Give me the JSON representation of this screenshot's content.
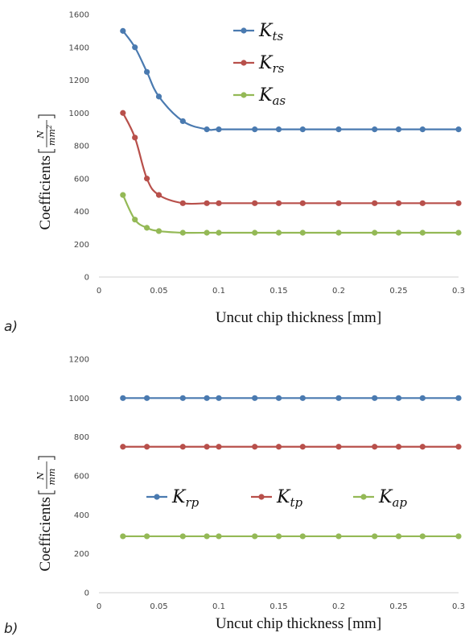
{
  "chart_data": [
    {
      "type": "line",
      "panel_label": "a)",
      "xlabel": "Uncut chip thickness [mm]",
      "ylabel": "Coefficients",
      "ylabel_unit_num": "N",
      "ylabel_unit_den": "mm",
      "ylabel_unit_den_exp": "2",
      "xlim": [
        0,
        0.3
      ],
      "ylim": [
        0,
        1600
      ],
      "xticks": [
        0,
        0.05,
        0.1,
        0.15,
        0.2,
        0.25,
        0.3
      ],
      "xtick_labels": [
        "0",
        "0.05",
        "0.1",
        "0.15",
        "0.2",
        "0.25",
        "0.3"
      ],
      "yticks": [
        0,
        200,
        400,
        600,
        800,
        1000,
        1200,
        1400,
        1600
      ],
      "ytick_labels": [
        "0",
        "200",
        "400",
        "600",
        "800",
        "1000",
        "1200",
        "1400",
        "1600"
      ],
      "grid": false,
      "legend_position": "top-center",
      "x": [
        0.02,
        0.03,
        0.04,
        0.05,
        0.07,
        0.09,
        0.1,
        0.13,
        0.15,
        0.17,
        0.2,
        0.23,
        0.25,
        0.27,
        0.3
      ],
      "series": [
        {
          "name": "K",
          "sub": "ts",
          "color": "#4a7ab0",
          "values": [
            1500,
            1400,
            1250,
            1100,
            950,
            900,
            900,
            900,
            900,
            900,
            900,
            900,
            900,
            900,
            900
          ]
        },
        {
          "name": "K",
          "sub": "rs",
          "color": "#b8504b",
          "values": [
            1000,
            850,
            600,
            500,
            450,
            450,
            450,
            450,
            450,
            450,
            450,
            450,
            450,
            450,
            450
          ]
        },
        {
          "name": "K",
          "sub": "as",
          "color": "#94b956",
          "values": [
            500,
            350,
            300,
            280,
            270,
            270,
            270,
            270,
            270,
            270,
            270,
            270,
            270,
            270,
            270
          ]
        }
      ]
    },
    {
      "type": "line",
      "panel_label": "b)",
      "xlabel": "Uncut chip thickness [mm]",
      "ylabel": "Coefficients",
      "ylabel_unit_num": "N",
      "ylabel_unit_den": "mm",
      "ylabel_unit_den_exp": "",
      "xlim": [
        0,
        0.3
      ],
      "ylim": [
        0,
        1200
      ],
      "xticks": [
        0,
        0.05,
        0.1,
        0.15,
        0.2,
        0.25,
        0.3
      ],
      "xtick_labels": [
        "0",
        "0.05",
        "0.1",
        "0.15",
        "0.2",
        "0.25",
        "0.3"
      ],
      "yticks": [
        0,
        200,
        400,
        600,
        800,
        1000,
        1200
      ],
      "ytick_labels": [
        "0",
        "200",
        "400",
        "600",
        "800",
        "1000",
        "1200"
      ],
      "grid": false,
      "legend_position": "center (horizontal)",
      "x": [
        0.02,
        0.04,
        0.07,
        0.09,
        0.1,
        0.13,
        0.15,
        0.17,
        0.2,
        0.23,
        0.25,
        0.27,
        0.3
      ],
      "series": [
        {
          "name": "K",
          "sub": "rp",
          "color": "#4a7ab0",
          "values": [
            1000,
            1000,
            1000,
            1000,
            1000,
            1000,
            1000,
            1000,
            1000,
            1000,
            1000,
            1000,
            1000
          ]
        },
        {
          "name": "K",
          "sub": "tp",
          "color": "#b8504b",
          "values": [
            750,
            750,
            750,
            750,
            750,
            750,
            750,
            750,
            750,
            750,
            750,
            750,
            750
          ]
        },
        {
          "name": "K",
          "sub": "ap",
          "color": "#94b956",
          "values": [
            290,
            290,
            290,
            290,
            290,
            290,
            290,
            290,
            290,
            290,
            290,
            290,
            290
          ]
        }
      ]
    }
  ]
}
